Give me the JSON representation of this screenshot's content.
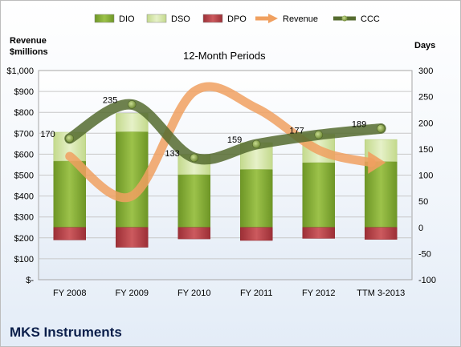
{
  "chart_data": {
    "type": "bar",
    "title": "",
    "subtitle": "12-Month Periods",
    "company": "MKS Instruments",
    "left_axis": {
      "label_line1": "Revenue",
      "label_line2": "$millions",
      "ylim": [
        0,
        1000
      ],
      "ticks": [
        "$-",
        "$100",
        "$200",
        "$300",
        "$400",
        "$500",
        "$600",
        "$700",
        "$800",
        "$900",
        "$1,000"
      ]
    },
    "right_axis": {
      "label": "Days",
      "ylim": [
        -100,
        300
      ],
      "ticks": [
        "-100",
        "-50",
        "0",
        "50",
        "100",
        "150",
        "200",
        "250",
        "300"
      ]
    },
    "categories": [
      "FY 2008",
      "FY 2009",
      "FY 2010",
      "FY 2011",
      "FY 2012",
      "TTM 3-2013"
    ],
    "series": [
      {
        "name": "DIO",
        "axis": "right",
        "kind": "stacked-bar",
        "values": [
          127,
          183,
          101,
          111,
          124,
          126
        ]
      },
      {
        "name": "DSO",
        "axis": "right",
        "kind": "stacked-bar",
        "values": [
          55,
          35,
          38,
          51,
          54,
          42
        ]
      },
      {
        "name": "DPO",
        "axis": "right",
        "kind": "stacked-bar-negative",
        "values": [
          -24,
          -38,
          -22,
          -25,
          -21,
          -23
        ]
      },
      {
        "name": "Revenue",
        "axis": "left",
        "kind": "line",
        "values": [
          590,
          400,
          900,
          820,
          620,
          560
        ]
      },
      {
        "name": "CCC",
        "axis": "right",
        "kind": "line",
        "values": [
          170,
          235,
          133,
          159,
          177,
          189
        ]
      }
    ],
    "ccc_labels": [
      "170",
      "235",
      "133",
      "159",
      "177",
      "189"
    ],
    "colors": {
      "DIO": "#8db33a",
      "DSO": "#d5e6a6",
      "DPO": "#b8454a",
      "Revenue": "#f0a060",
      "CCC": "#556b2f"
    },
    "grid": true,
    "legend_position": "top"
  }
}
